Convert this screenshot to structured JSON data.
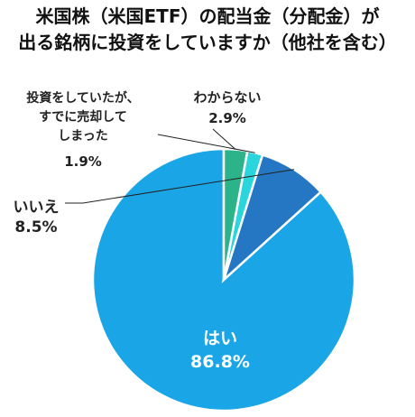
{
  "title": {
    "line1": "米国株（米国ETF）の配当金（分配金）が",
    "line2": "出る銘柄に投資をしていますか（他社を含む）"
  },
  "chart_data": {
    "type": "pie",
    "title": "米国株（米国ETF）の配当金（分配金）が出る銘柄に投資をしていますか（他社を含む）",
    "start_angle_deg": 0,
    "direction": "counterclockwise",
    "slices": [
      {
        "label": "はい",
        "value": 86.8,
        "value_text": "86.8%",
        "color": "#1aa6e6"
      },
      {
        "label": "いいえ",
        "value": 8.5,
        "value_text": "8.5%",
        "color": "#2577c4"
      },
      {
        "label": "投資をしていたが、すでに売却してしまった",
        "label_lines": [
          "投資をしていたが、",
          "すでに売却して",
          "しまった"
        ],
        "value": 1.9,
        "value_text": "1.9%",
        "color": "#2ad6dc"
      },
      {
        "label": "わからない",
        "value": 2.9,
        "value_text": "2.9%",
        "color": "#2cb38a"
      }
    ]
  }
}
